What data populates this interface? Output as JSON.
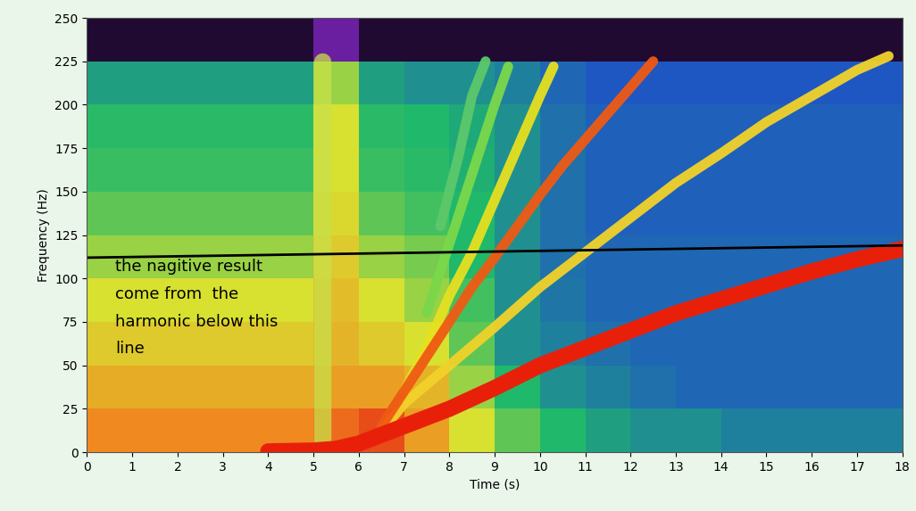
{
  "chart_data": {
    "type": "spectrogram",
    "x_label": "Time (s)",
    "y_label": "Frequency (Hz)",
    "xlim": [
      0,
      18
    ],
    "ylim": [
      0,
      250
    ],
    "xticks": [
      0,
      1,
      2,
      3,
      4,
      5,
      6,
      7,
      8,
      9,
      10,
      11,
      12,
      13,
      14,
      15,
      16,
      17,
      18
    ],
    "yticks": [
      0,
      25,
      50,
      75,
      100,
      125,
      150,
      175,
      200,
      225,
      250
    ],
    "time_edges": [
      0,
      1,
      2,
      3,
      4,
      5,
      6,
      7,
      8,
      9,
      10,
      11,
      12,
      13,
      14,
      15,
      16,
      17,
      18
    ],
    "freq_edges": [
      0,
      25,
      50,
      75,
      100,
      125,
      150,
      175,
      200,
      225,
      250
    ],
    "color_range": [
      0,
      1
    ],
    "cells": [
      [
        0.8,
        0.8,
        0.8,
        0.8,
        0.8,
        0.85,
        0.9,
        0.75,
        0.6,
        0.5,
        0.45,
        0.42,
        0.4,
        0.4,
        0.38,
        0.38,
        0.38,
        0.38
      ],
      [
        0.72,
        0.72,
        0.72,
        0.72,
        0.72,
        0.75,
        0.75,
        0.7,
        0.55,
        0.45,
        0.4,
        0.38,
        0.36,
        0.35,
        0.35,
        0.35,
        0.35,
        0.35
      ],
      [
        0.65,
        0.65,
        0.65,
        0.65,
        0.65,
        0.7,
        0.65,
        0.6,
        0.5,
        0.4,
        0.38,
        0.36,
        0.35,
        0.35,
        0.35,
        0.35,
        0.35,
        0.35
      ],
      [
        0.6,
        0.6,
        0.6,
        0.6,
        0.6,
        0.68,
        0.6,
        0.55,
        0.48,
        0.4,
        0.37,
        0.35,
        0.35,
        0.35,
        0.35,
        0.35,
        0.35,
        0.35
      ],
      [
        0.55,
        0.55,
        0.55,
        0.55,
        0.55,
        0.65,
        0.55,
        0.52,
        0.45,
        0.4,
        0.36,
        0.35,
        0.35,
        0.35,
        0.35,
        0.35,
        0.35,
        0.35
      ],
      [
        0.5,
        0.5,
        0.5,
        0.5,
        0.5,
        0.62,
        0.5,
        0.48,
        0.45,
        0.4,
        0.36,
        0.34,
        0.34,
        0.34,
        0.34,
        0.34,
        0.34,
        0.34
      ],
      [
        0.47,
        0.47,
        0.47,
        0.47,
        0.47,
        0.6,
        0.47,
        0.46,
        0.44,
        0.4,
        0.36,
        0.34,
        0.34,
        0.34,
        0.34,
        0.34,
        0.34,
        0.34
      ],
      [
        0.46,
        0.46,
        0.46,
        0.46,
        0.46,
        0.6,
        0.46,
        0.45,
        0.43,
        0.4,
        0.36,
        0.34,
        0.34,
        0.34,
        0.34,
        0.34,
        0.34,
        0.34
      ],
      [
        0.42,
        0.42,
        0.42,
        0.42,
        0.42,
        0.55,
        0.42,
        0.4,
        0.4,
        0.38,
        0.35,
        0.33,
        0.33,
        0.33,
        0.33,
        0.33,
        0.33,
        0.33
      ],
      [
        0.05,
        0.05,
        0.05,
        0.05,
        0.05,
        0.15,
        0.05,
        0.05,
        0.05,
        0.05,
        0.05,
        0.05,
        0.05,
        0.05,
        0.05,
        0.05,
        0.05,
        0.05
      ]
    ],
    "series": [
      {
        "color": "#c8e04a",
        "x": [
          5.2,
          5.2
        ],
        "values": [
          0,
          225
        ]
      },
      {
        "color": "#5cc86a",
        "x": [
          7.8,
          8.2,
          8.5,
          8.8
        ],
        "values": [
          130,
          170,
          205,
          225
        ]
      },
      {
        "color": "#7ad84a",
        "x": [
          7.5,
          8,
          8.5,
          9,
          9.3
        ],
        "values": [
          80,
          120,
          160,
          200,
          222
        ]
      },
      {
        "color": "#e6e020",
        "x": [
          7,
          7.5,
          8,
          8.5,
          9,
          9.5,
          10,
          10.3
        ],
        "values": [
          35,
          60,
          90,
          115,
          145,
          175,
          205,
          222
        ]
      },
      {
        "color": "#f2d22a",
        "x": [
          6.5,
          7,
          8,
          9,
          10,
          11,
          12,
          13,
          14,
          15,
          16,
          17,
          17.7
        ],
        "values": [
          12,
          28,
          50,
          72,
          95,
          115,
          135,
          155,
          172,
          190,
          205,
          220,
          228
        ]
      },
      {
        "color": "#ef5a14",
        "x": [
          6.5,
          7,
          7.5,
          8,
          8.5,
          9,
          9.5,
          10,
          10.5,
          11,
          11.5,
          12,
          12.5
        ],
        "values": [
          15,
          35,
          55,
          75,
          95,
          112,
          130,
          148,
          165,
          180,
          195,
          210,
          225
        ]
      },
      {
        "color": "#e8200a",
        "x": [
          4,
          5,
          5.5,
          6,
          6.5,
          7,
          8,
          9,
          10,
          11,
          12,
          13,
          14,
          15,
          16,
          17,
          18
        ],
        "values": [
          0.5,
          1,
          2,
          5,
          10,
          15,
          25,
          37,
          50,
          60,
          70,
          80,
          88,
          96,
          104,
          111,
          117
        ]
      }
    ],
    "threshold_line": {
      "color": "#000000",
      "x": [
        0,
        18
      ],
      "values": [
        112,
        119
      ]
    },
    "annotation": "the nagitive result\ncome from  the\nharmonic below this\nline"
  }
}
